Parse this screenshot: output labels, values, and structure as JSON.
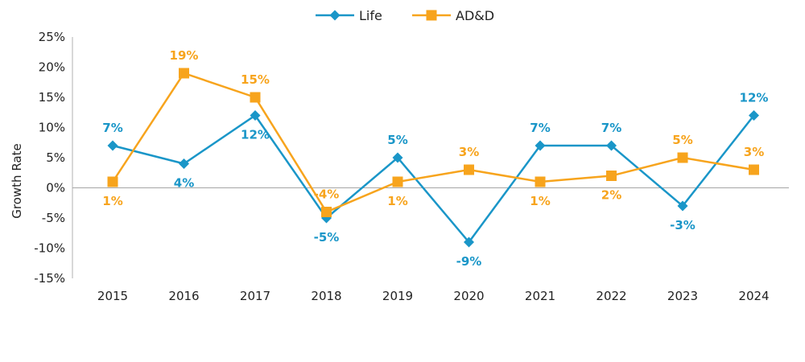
{
  "chart_data": {
    "type": "line",
    "title": "",
    "xlabel": "",
    "ylabel": "Growth Rate",
    "ylim": [
      -15,
      25
    ],
    "yticks": [
      25,
      20,
      15,
      10,
      5,
      0,
      -5,
      -10,
      -15
    ],
    "ytick_labels": [
      "25%",
      "20%",
      "15%",
      "10%",
      "5%",
      "0%",
      "-5%",
      "-10%",
      "-15%"
    ],
    "categories": [
      "2015",
      "2016",
      "2017",
      "2018",
      "2019",
      "2020",
      "2021",
      "2022",
      "2023",
      "2024"
    ],
    "grid": false,
    "legend_position": "top-center",
    "series": [
      {
        "name": "Life",
        "color": "#1a96c8",
        "marker": "diamond",
        "values": [
          7,
          4,
          12,
          -5,
          5,
          -9,
          7,
          7,
          -3,
          12
        ],
        "labels": [
          "7%",
          "4%",
          "12%",
          "-5%",
          "5%",
          "-9%",
          "7%",
          "7%",
          "-3%",
          "12%"
        ],
        "label_positions": [
          "above",
          "below",
          "below",
          "below",
          "above",
          "below",
          "above",
          "above",
          "below",
          "above"
        ]
      },
      {
        "name": "AD&D",
        "color": "#f7a41d",
        "marker": "square",
        "values": [
          1,
          19,
          15,
          -4,
          1,
          3,
          1,
          2,
          5,
          3
        ],
        "labels": [
          "1%",
          "19%",
          "15%",
          "-4%",
          "1%",
          "3%",
          "1%",
          "2%",
          "5%",
          "3%"
        ],
        "label_positions": [
          "below",
          "above",
          "above",
          "above",
          "below",
          "above",
          "below",
          "below",
          "above",
          "above"
        ]
      }
    ]
  }
}
